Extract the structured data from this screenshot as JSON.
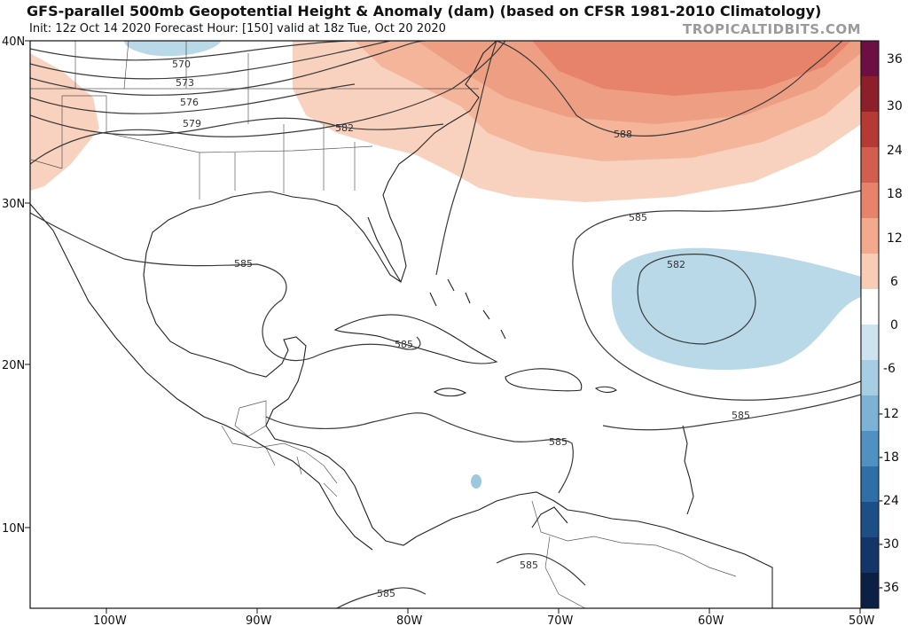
{
  "header": {
    "title": "GFS-parallel 500mb Geopotential Height & Anomaly (dam) (based on CFSR 1981-2010 Climatology)",
    "subtitle": "Init: 12z Oct 14 2020   Forecast Hour: [150]   valid at 18z Tue, Oct 20 2020",
    "brand": "TROPICALTIDBITS.COM"
  },
  "axes": {
    "lat_labels": [
      "40N",
      "30N",
      "20N",
      "10N"
    ],
    "lon_labels": [
      "100W",
      "90W",
      "80W",
      "70W",
      "60W",
      "50W"
    ]
  },
  "colorbar": {
    "labels": [
      "36",
      "30",
      "24",
      "18",
      "12",
      "6",
      "0",
      "-6",
      "-12",
      "-18",
      "-24",
      "-30",
      "-36"
    ],
    "colors": [
      "#6b0f44",
      "#8c1f2a",
      "#b53a33",
      "#d45e4e",
      "#e6836a",
      "#f2a98c",
      "#f9cdb5",
      "#ffffff",
      "#cde3ef",
      "#a7cde3",
      "#7cb2d5",
      "#4f91c2",
      "#2e6fa8",
      "#1c4f88",
      "#14356a",
      "#0c1f44"
    ]
  },
  "contour_labels": [
    "570",
    "573",
    "576",
    "579",
    "582",
    "585",
    "585",
    "585",
    "588",
    "582",
    "585",
    "585",
    "585",
    "585",
    "585"
  ],
  "colors": {
    "positive_anomaly": "#f4b59b",
    "positive_strong": "#ea8d70",
    "negative_anomaly": "#b9d8e8",
    "land_outline": "#222222",
    "contour": "#444444"
  }
}
